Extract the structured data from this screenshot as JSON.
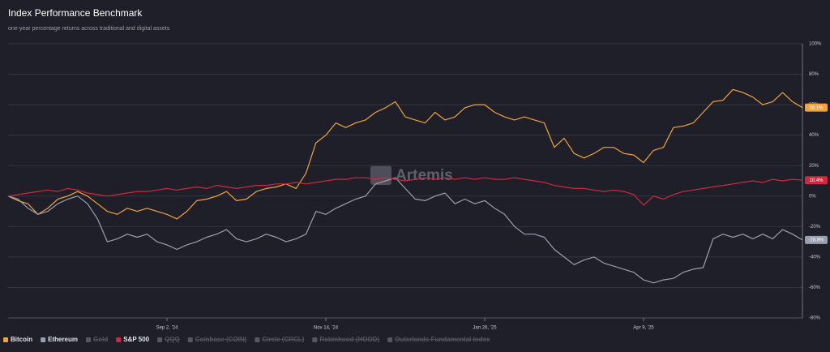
{
  "chart_data": {
    "type": "line",
    "title": "Index Performance Benchmark",
    "subtitle": "one-year percentage returns across traditional and digital assets",
    "watermark": "Artemis",
    "categories": [
      null,
      null,
      null,
      null,
      null,
      null,
      null,
      null,
      null,
      null,
      null,
      null,
      null,
      null,
      null,
      null,
      "Sep 2, '24",
      null,
      null,
      null,
      null,
      null,
      null,
      null,
      null,
      null,
      null,
      null,
      null,
      null,
      null,
      null,
      "Nov 14, '24",
      null,
      null,
      null,
      null,
      null,
      null,
      null,
      null,
      null,
      null,
      null,
      null,
      null,
      null,
      null,
      "Jan 26, '25",
      null,
      null,
      null,
      null,
      null,
      null,
      null,
      null,
      null,
      null,
      null,
      null,
      null,
      null,
      null,
      "Apr 9, '25",
      null,
      null,
      null,
      null,
      null,
      null,
      null,
      null,
      null,
      null,
      null,
      null,
      null,
      null,
      null,
      null
    ],
    "series": [
      {
        "name": "Bitcoin",
        "color": "#f2a33a",
        "end_label": "58.1%",
        "values": [
          0,
          -3,
          -5,
          -12,
          -8,
          -2,
          0,
          3,
          0,
          -5,
          -10,
          -12,
          -8,
          -10,
          -8,
          -10,
          -12,
          -15,
          -10,
          -3,
          -2,
          0,
          3,
          -3,
          -2,
          3,
          5,
          6,
          8,
          5,
          15,
          35,
          40,
          48,
          45,
          48,
          50,
          55,
          58,
          62,
          52,
          50,
          48,
          55,
          50,
          52,
          58,
          60,
          60,
          55,
          52,
          50,
          52,
          50,
          48,
          32,
          38,
          28,
          25,
          28,
          32,
          32,
          28,
          27,
          22,
          30,
          32,
          45,
          46,
          48,
          55,
          62,
          63,
          70,
          68,
          65,
          60,
          62,
          68,
          62,
          58.1
        ]
      },
      {
        "name": "Ethereum",
        "color": "#9a9fb0",
        "end_label": "-28.8%",
        "values": [
          0,
          -2,
          -8,
          -12,
          -10,
          -5,
          -2,
          0,
          -5,
          -15,
          -30,
          -28,
          -25,
          -27,
          -25,
          -30,
          -32,
          -35,
          -32,
          -30,
          -27,
          -25,
          -22,
          -28,
          -30,
          -28,
          -25,
          -27,
          -30,
          -28,
          -25,
          -10,
          -12,
          -8,
          -5,
          -2,
          0,
          8,
          10,
          12,
          5,
          -2,
          -3,
          0,
          2,
          -5,
          -2,
          -5,
          -3,
          -8,
          -12,
          -20,
          -25,
          -25,
          -27,
          -35,
          -40,
          -45,
          -42,
          -40,
          -44,
          -46,
          -48,
          -50,
          -55,
          -57,
          -55,
          -54,
          -50,
          -48,
          -47,
          -28,
          -25,
          -27,
          -25,
          -28,
          -25,
          -28,
          -22,
          -25,
          -28.8
        ]
      },
      {
        "name": "S&P 500",
        "color": "#d0283c",
        "end_label": "10.4%",
        "values": [
          0,
          1,
          2,
          3,
          4,
          3,
          5,
          4,
          2,
          1,
          0,
          1,
          2,
          3,
          3,
          4,
          5,
          4,
          5,
          6,
          5,
          7,
          6,
          5,
          6,
          7,
          7,
          8,
          8,
          9,
          8,
          9,
          10,
          11,
          11,
          12,
          12,
          11,
          12,
          11,
          10,
          11,
          12,
          11,
          12,
          11,
          12,
          11,
          12,
          11,
          11,
          12,
          11,
          10,
          9,
          7,
          6,
          5,
          5,
          4,
          3,
          4,
          3,
          1,
          -6,
          0,
          -2,
          1,
          3,
          4,
          5,
          6,
          7,
          8,
          9,
          10,
          9,
          11,
          10,
          11,
          10.4
        ]
      }
    ],
    "hidden_series": [
      {
        "name": "Gold"
      },
      {
        "name": "QQQ"
      },
      {
        "name": "Coinbase (COIN)"
      },
      {
        "name": "Circle (CRCL)"
      },
      {
        "name": "Robinhood (HOOD)"
      },
      {
        "name": "Outerlands Fundamental Index"
      }
    ],
    "legend_order": [
      "Bitcoin",
      "Ethereum",
      "Gold",
      "S&P 500",
      "QQQ",
      "Coinbase (COIN)",
      "Circle (CRCL)",
      "Robinhood (HOOD)",
      "Outerlands Fundamental Index"
    ],
    "ylim": [
      -80,
      100
    ],
    "yticks": [
      {
        "value": -80,
        "label": "-80%"
      },
      {
        "value": -60,
        "label": "-60%"
      },
      {
        "value": -40,
        "label": "-40%"
      },
      {
        "value": -20,
        "label": "-20%"
      },
      {
        "value": 0,
        "label": "0%"
      },
      {
        "value": 20,
        "label": "20%"
      },
      {
        "value": 40,
        "label": "40%"
      },
      {
        "value": 60,
        "label": "60%"
      },
      {
        "value": 80,
        "label": "80%"
      },
      {
        "value": 100,
        "label": "100%"
      }
    ],
    "grid": true
  }
}
